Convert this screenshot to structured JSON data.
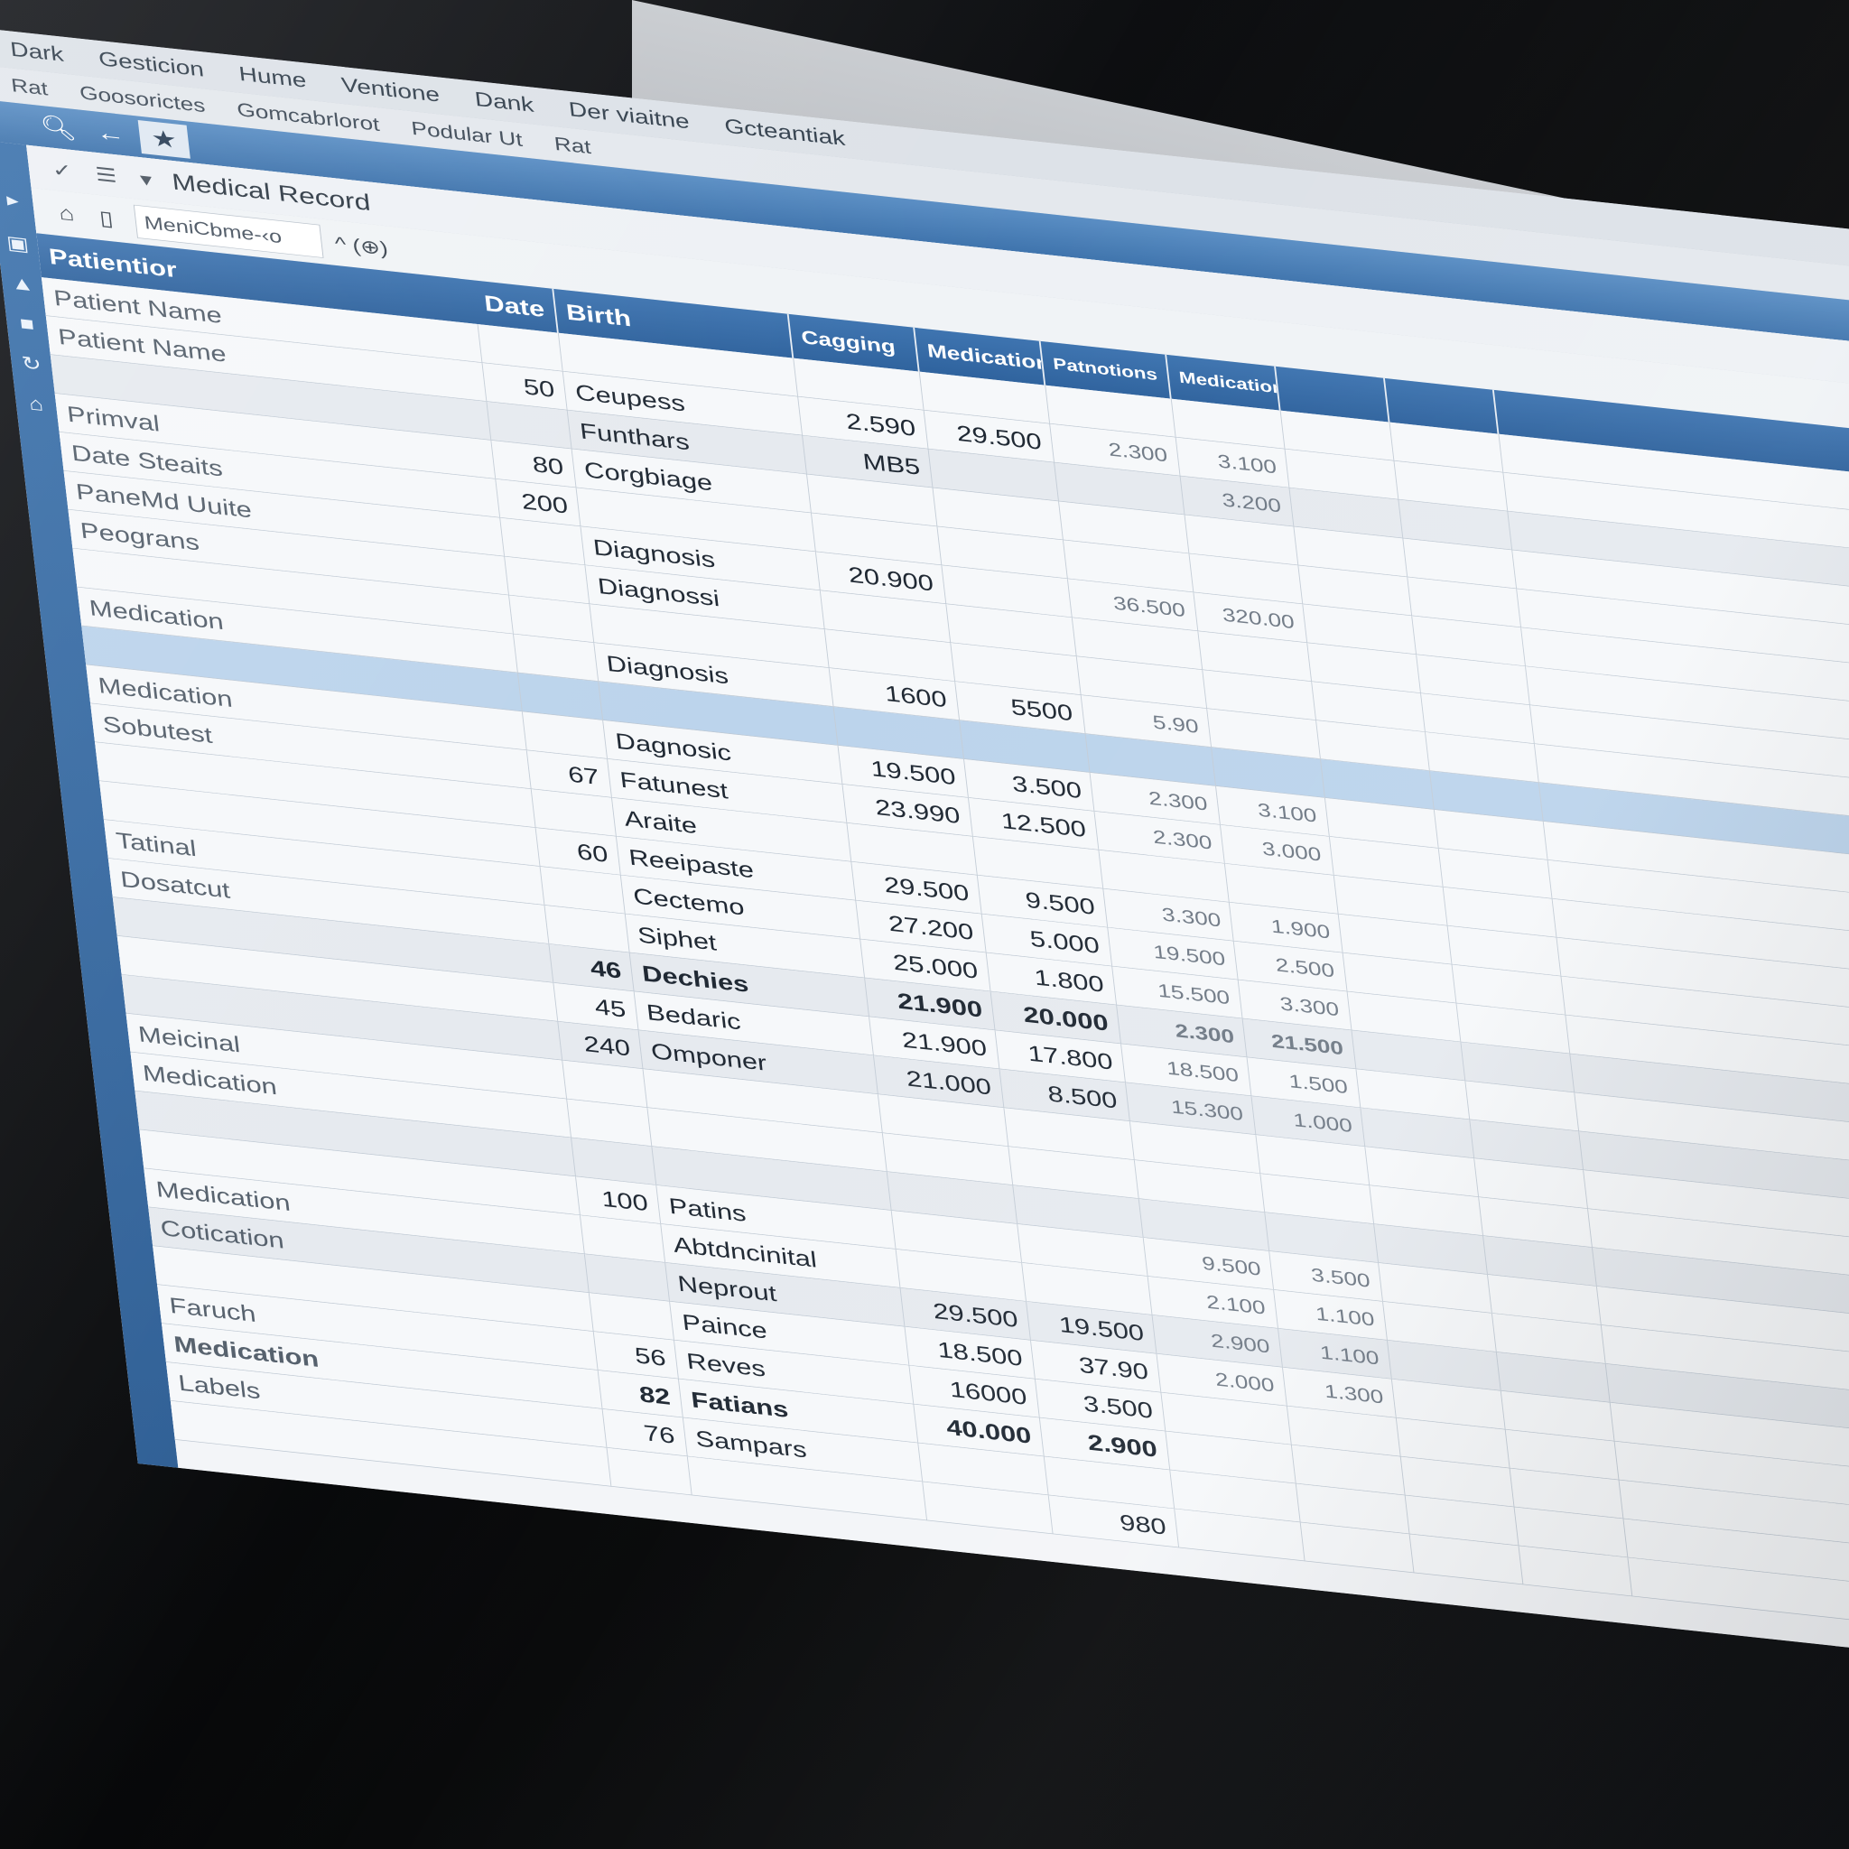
{
  "menubar": [
    "Dark",
    "Gesticion",
    "Hume",
    "Ventione",
    "Dank",
    "Der viaitne",
    "Gcteantiak"
  ],
  "submenu": [
    "Rat",
    "Goosorictes",
    "Gomcabrlorot",
    "Podular Ut",
    "Rat"
  ],
  "nav_star": "★",
  "window_title": "Medical Record",
  "search": {
    "value": "MeniCbme-‹o"
  },
  "toolbar_extra": "^ (⊕)",
  "columns": [
    "Patientior",
    "Date",
    "Birth",
    "Cagging",
    "Medication",
    "Patnotions",
    "Medication",
    "",
    ""
  ],
  "rows": [
    {
      "style": "",
      "c0": "Patient Name",
      "c1": "",
      "c2": "",
      "c3": "",
      "c4": "",
      "c5": "",
      "c6": "",
      "c7": "",
      "c8": ""
    },
    {
      "style": "",
      "c0": "Patient Name",
      "c1": "50",
      "c2": "Ceupess",
      "c3": "2.590",
      "c4": "29.500",
      "c5": "2.300",
      "c6": "3.100",
      "c7": "",
      "c8": ""
    },
    {
      "style": "alt",
      "c0": "",
      "c1": "",
      "c2": "Funthars",
      "c3": "MB5",
      "c4": "",
      "c5": "",
      "c6": "3.200",
      "c7": "",
      "c8": ""
    },
    {
      "style": "",
      "c0": "Primval",
      "c1": "80",
      "c2": "Corgbiage",
      "c3": "",
      "c4": "",
      "c5": "",
      "c6": "",
      "c7": "",
      "c8": ""
    },
    {
      "style": "",
      "c0": "Date Steaits",
      "c1": "200",
      "c2": "",
      "c3": "",
      "c4": "",
      "c5": "",
      "c6": "",
      "c7": "",
      "c8": ""
    },
    {
      "style": "",
      "c0": "PaneMd Uuite",
      "c1": "",
      "c2": "Diagnosis",
      "c3": "20.900",
      "c4": "",
      "c5": "36.500",
      "c6": "320.00",
      "c7": "",
      "c8": ""
    },
    {
      "style": "",
      "c0": "Peograns",
      "c1": "",
      "c2": "Diagnossi",
      "c3": "",
      "c4": "",
      "c5": "",
      "c6": "",
      "c7": "",
      "c8": ""
    },
    {
      "style": "",
      "c0": "",
      "c1": "",
      "c2": "",
      "c3": "",
      "c4": "",
      "c5": "",
      "c6": "",
      "c7": "",
      "c8": ""
    },
    {
      "style": "",
      "c0": "Medication",
      "c1": "",
      "c2": "Diagnosis",
      "c3": "1600",
      "c4": "5500",
      "c5": "5.90",
      "c6": "",
      "c7": "",
      "c8": ""
    },
    {
      "style": "hl",
      "c0": "",
      "c1": "",
      "c2": "",
      "c3": "",
      "c4": "",
      "c5": "",
      "c6": "",
      "c7": "",
      "c8": ""
    },
    {
      "style": "",
      "c0": "Medication",
      "c1": "",
      "c2": "Dagnosic",
      "c3": "19.500",
      "c4": "3.500",
      "c5": "2.300",
      "c6": "3.100",
      "c7": "",
      "c8": ""
    },
    {
      "style": "",
      "c0": "Sobutest",
      "c1": "67",
      "c2": "Fatunest",
      "c3": "23.990",
      "c4": "12.500",
      "c5": "2.300",
      "c6": "3.000",
      "c7": "",
      "c8": ""
    },
    {
      "style": "",
      "c0": "",
      "c1": "",
      "c2": "Araite",
      "c3": "",
      "c4": "",
      "c5": "",
      "c6": "",
      "c7": "",
      "c8": ""
    },
    {
      "style": "",
      "c0": "",
      "c1": "60",
      "c2": "Reeipaste",
      "c3": "29.500",
      "c4": "9.500",
      "c5": "3.300",
      "c6": "1.900",
      "c7": "",
      "c8": ""
    },
    {
      "style": "",
      "c0": "Tatinal",
      "c1": "",
      "c2": "Cectemo",
      "c3": "27.200",
      "c4": "5.000",
      "c5": "19.500",
      "c6": "2.500",
      "c7": "",
      "c8": ""
    },
    {
      "style": "",
      "c0": "Dosatcut",
      "c1": "",
      "c2": "Siphet",
      "c3": "25.000",
      "c4": "1.800",
      "c5": "15.500",
      "c6": "3.300",
      "c7": "",
      "c8": ""
    },
    {
      "style": "alt",
      "c0": "",
      "c1": "46",
      "c2": "Dechies",
      "c3": "21.900",
      "c4": "20.000",
      "c5": "2.300",
      "c6": "21.500",
      "c7": "",
      "c8": "",
      "bold": true
    },
    {
      "style": "",
      "c0": "",
      "c1": "45",
      "c2": "Bedaric",
      "c3": "21.900",
      "c4": "17.800",
      "c5": "18.500",
      "c6": "1.500",
      "c7": "",
      "c8": ""
    },
    {
      "style": "alt",
      "c0": "",
      "c1": "240",
      "c2": "Omponer",
      "c3": "21.000",
      "c4": "8.500",
      "c5": "15.300",
      "c6": "1.000",
      "c7": "",
      "c8": ""
    },
    {
      "style": "",
      "c0": "Meicinal",
      "c1": "",
      "c2": "",
      "c3": "",
      "c4": "",
      "c5": "",
      "c6": "",
      "c7": "",
      "c8": ""
    },
    {
      "style": "",
      "c0": "Medication",
      "c1": "",
      "c2": "",
      "c3": "",
      "c4": "",
      "c5": "",
      "c6": "",
      "c7": "",
      "c8": ""
    },
    {
      "style": "alt",
      "c0": "",
      "c1": "",
      "c2": "",
      "c3": "",
      "c4": "",
      "c5": "",
      "c6": "",
      "c7": "",
      "c8": ""
    },
    {
      "style": "",
      "c0": "",
      "c1": "100",
      "c2": "Patins",
      "c3": "",
      "c4": "",
      "c5": "9.500",
      "c6": "3.500",
      "c7": "",
      "c8": ""
    },
    {
      "style": "",
      "c0": "Medication",
      "c1": "",
      "c2": "Abtdncinital",
      "c3": "",
      "c4": "",
      "c5": "2.100",
      "c6": "1.100",
      "c7": "",
      "c8": ""
    },
    {
      "style": "alt",
      "c0": "Cotication",
      "c1": "",
      "c2": "Neprout",
      "c3": "29.500",
      "c4": "19.500",
      "c5": "2.900",
      "c6": "1.100",
      "c7": "",
      "c8": ""
    },
    {
      "style": "",
      "c0": "",
      "c1": "",
      "c2": "Paince",
      "c3": "18.500",
      "c4": "37.90",
      "c5": "2.000",
      "c6": "1.300",
      "c7": "",
      "c8": ""
    },
    {
      "style": "",
      "c0": "Faruch",
      "c1": "56",
      "c2": "Reves",
      "c3": "16000",
      "c4": "3.500",
      "c5": "",
      "c6": "",
      "c7": "",
      "c8": ""
    },
    {
      "style": "",
      "c0": "Medication",
      "c1": "82",
      "c2": "Fatians",
      "c3": "40.000",
      "c4": "2.900",
      "c5": "",
      "c6": "",
      "c7": "",
      "c8": "",
      "bold": true
    },
    {
      "style": "",
      "c0": "Labels",
      "c1": "76",
      "c2": "Sampars",
      "c3": "",
      "c4": "",
      "c5": "",
      "c6": "",
      "c7": "",
      "c8": ""
    },
    {
      "style": "",
      "c0": "",
      "c1": "",
      "c2": "",
      "c3": "",
      "c4": "980",
      "c5": "",
      "c6": "",
      "c7": "",
      "c8": ""
    }
  ]
}
